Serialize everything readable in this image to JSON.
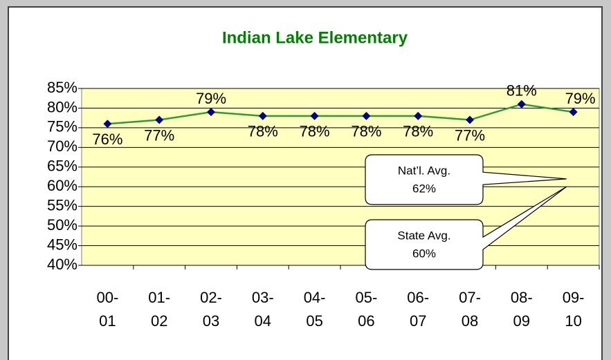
{
  "chart_data": {
    "type": "line",
    "title": "Indian Lake Elementary",
    "categories": [
      "00-01",
      "01-02",
      "02-03",
      "03-04",
      "04-05",
      "05-06",
      "06-07",
      "07-08",
      "08-09",
      "09-10"
    ],
    "values": [
      76,
      77,
      79,
      78,
      78,
      78,
      78,
      77,
      81,
      79
    ],
    "value_labels": [
      "76%",
      "77%",
      "79%",
      "78%",
      "78%",
      "78%",
      "78%",
      "77%",
      "81%",
      "79%"
    ],
    "color": "#339933",
    "marker_color": "#000080",
    "ylim": [
      40,
      85
    ],
    "yticks": [
      {
        "value": 40,
        "label": "40%"
      },
      {
        "value": 45,
        "label": "45%"
      },
      {
        "value": 50,
        "label": "50%"
      },
      {
        "value": 55,
        "label": "55%"
      },
      {
        "value": 60,
        "label": "60%"
      },
      {
        "value": 65,
        "label": "65%"
      },
      {
        "value": 70,
        "label": "70%"
      },
      {
        "value": 75,
        "label": "75%"
      },
      {
        "value": 80,
        "label": "80%"
      },
      {
        "value": 85,
        "label": "85%"
      }
    ],
    "grid": true,
    "annotations": [
      {
        "text": "Nat’l. Avg.",
        "value": 62,
        "label": "62%"
      },
      {
        "text": "State Avg.",
        "value": 60,
        "label": "60%"
      }
    ]
  }
}
